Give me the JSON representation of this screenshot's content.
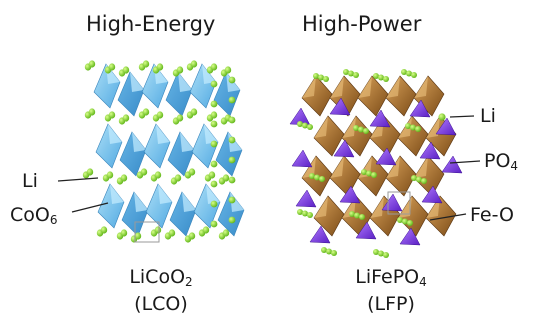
{
  "panels": {
    "left": {
      "title": "High-Energy",
      "labels": {
        "li": "Li",
        "coo6_main": "CoO",
        "coo6_sub": "6"
      },
      "formula_main": "LiCoO",
      "formula_sub": "2",
      "abbrev": "(LCO)"
    },
    "right": {
      "title": "High-Power",
      "labels": {
        "li": "Li",
        "po4_main": "PO",
        "po4_sub": "4",
        "feo": "Fe-O"
      },
      "formula_main": "LiFePO",
      "formula_sub": "4",
      "abbrev": "(LFP)"
    }
  },
  "colors": {
    "li_ion": "#7ed321",
    "coo6_octahedra": "#6ec3f0",
    "feo_octahedra": "#b07a2e",
    "po4_tetrahedra": "#8a40e6"
  }
}
